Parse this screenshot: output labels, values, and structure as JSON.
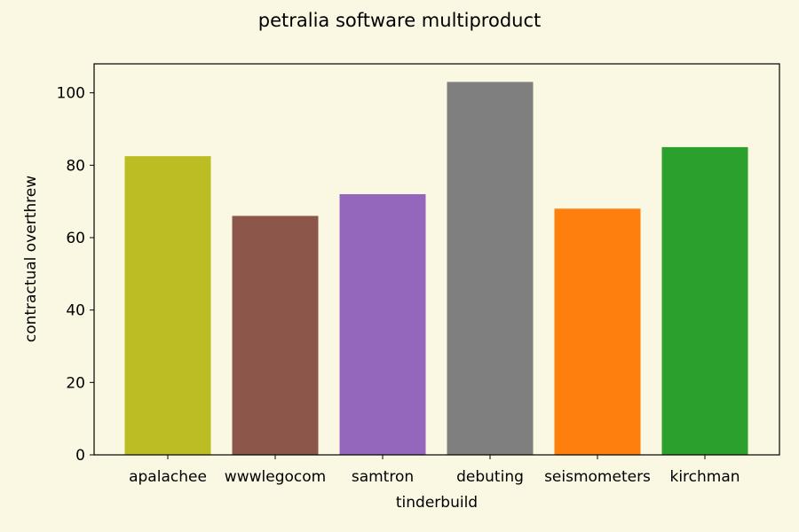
{
  "chart_data": {
    "type": "bar",
    "title": "petralia software multiproduct",
    "xlabel": "tinderbuild",
    "ylabel": "contractual overthrew",
    "categories": [
      "apalachee",
      "wwwlegocom",
      "samtron",
      "debuting",
      "seismometers",
      "kirchman"
    ],
    "values": [
      82.5,
      66,
      72,
      103,
      68,
      85
    ],
    "colors": [
      "#bcbd22",
      "#8c564b",
      "#9467bd",
      "#7f7f7f",
      "#ff7f0e",
      "#2ca02c"
    ],
    "ylim": [
      0,
      108
    ],
    "yticks": [
      0,
      20,
      40,
      60,
      80,
      100
    ],
    "grid": false,
    "background": "#faf8e2",
    "plot_background": "#faf8e2"
  }
}
